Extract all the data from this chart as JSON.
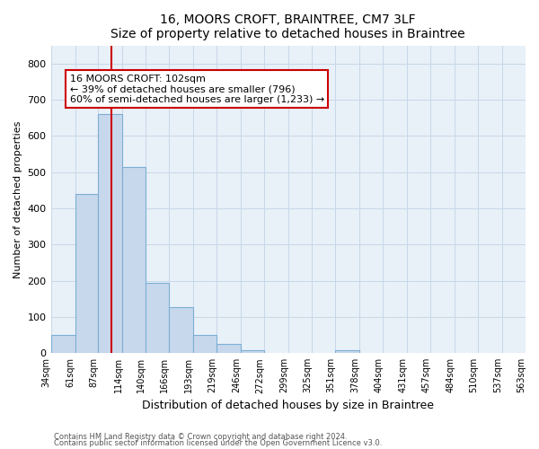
{
  "title": "16, MOORS CROFT, BRAINTREE, CM7 3LF",
  "subtitle": "Size of property relative to detached houses in Braintree",
  "xlabel": "Distribution of detached houses by size in Braintree",
  "ylabel": "Number of detached properties",
  "bin_edges": [
    34,
    61,
    87,
    114,
    140,
    166,
    193,
    219,
    246,
    272,
    299,
    325,
    351,
    378,
    404,
    431,
    457,
    484,
    510,
    537,
    563
  ],
  "bar_heights": [
    50,
    440,
    660,
    515,
    193,
    128,
    50,
    25,
    8,
    0,
    0,
    0,
    8,
    0,
    0,
    0,
    0,
    0,
    0,
    0
  ],
  "bar_color": "#c8d8ec",
  "bar_edge_color": "#7bafd4",
  "property_size": 102,
  "vline_color": "#cc0000",
  "annotation_text": "16 MOORS CROFT: 102sqm\n← 39% of detached houses are smaller (796)\n60% of semi-detached houses are larger (1,233) →",
  "annotation_box_color": "white",
  "annotation_box_edge_color": "#cc0000",
  "grid_color": "#c8d8e8",
  "background_color": "#e8f0f8",
  "ylim": [
    0,
    850
  ],
  "yticks": [
    0,
    100,
    200,
    300,
    400,
    500,
    600,
    700,
    800
  ],
  "footnote1": "Contains HM Land Registry data © Crown copyright and database right 2024.",
  "footnote2": "Contains public sector information licensed under the Open Government Licence v3.0."
}
